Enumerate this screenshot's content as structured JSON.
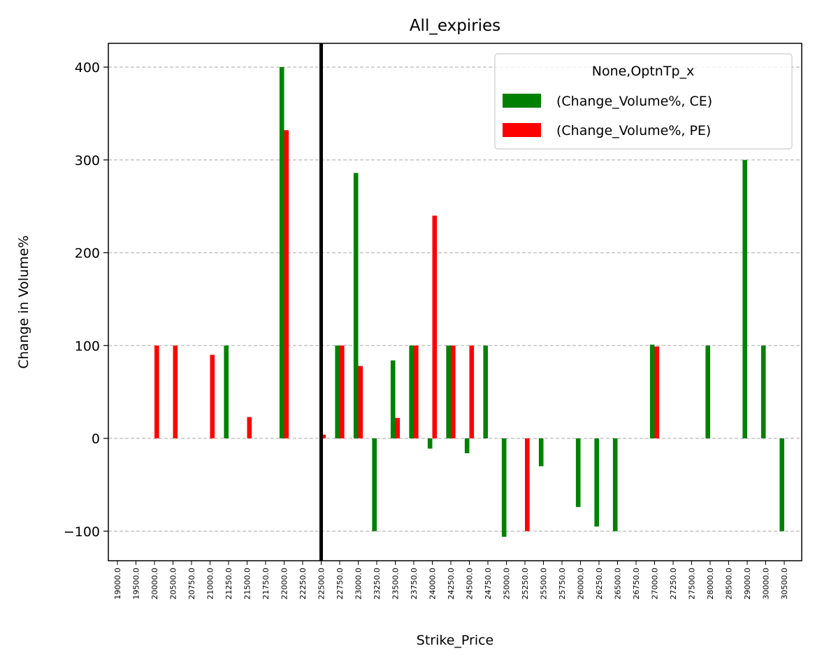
{
  "chart_data": {
    "type": "bar",
    "title": "All_expiries",
    "xlabel": "Strike_Price",
    "ylabel": "Change in Volume%",
    "ylim": [
      -130,
      425
    ],
    "yticks": [
      -100,
      0,
      100,
      200,
      300,
      400
    ],
    "ytick_labels": [
      "−100",
      "0",
      "100",
      "200",
      "300",
      "400"
    ],
    "grid": "y-dashed",
    "legend": {
      "title": "None,OptnTp_x",
      "placement": "top-right"
    },
    "vertical_marker": {
      "category": "22500.0",
      "color": "#000000"
    },
    "categories": [
      "19000.0",
      "19500.0",
      "20000.0",
      "20500.0",
      "20750.0",
      "21000.0",
      "21250.0",
      "21500.0",
      "21750.0",
      "22000.0",
      "22250.0",
      "22500.0",
      "22750.0",
      "23000.0",
      "23250.0",
      "23500.0",
      "23750.0",
      "24000.0",
      "24250.0",
      "24500.0",
      "24750.0",
      "25000.0",
      "25250.0",
      "25500.0",
      "25750.0",
      "26000.0",
      "26250.0",
      "26500.0",
      "26750.0",
      "27000.0",
      "27250.0",
      "27500.0",
      "28000.0",
      "28500.0",
      "29000.0",
      "30000.0",
      "30500.0"
    ],
    "series": [
      {
        "name": "(Change_Volume%, CE)",
        "color": "#008000",
        "values": [
          0,
          0,
          0,
          0,
          0,
          0,
          100,
          0,
          0,
          400,
          0,
          0,
          100,
          286,
          -100,
          84,
          100,
          -11,
          100,
          -16,
          100,
          -106,
          0,
          -30,
          0,
          -74,
          -95,
          -100,
          0,
          101,
          0,
          0,
          100,
          0,
          300,
          100,
          -100
        ]
      },
      {
        "name": "(Change_Volume%, PE)",
        "color": "#ff0000",
        "values": [
          0,
          0,
          100,
          100,
          0,
          90,
          0,
          23,
          0,
          332,
          0,
          4,
          100,
          78,
          0,
          22,
          100,
          240,
          100,
          100,
          0,
          0,
          -100,
          0,
          0,
          0,
          0,
          0,
          0,
          99,
          0,
          0,
          0,
          0,
          0,
          0,
          0
        ]
      }
    ]
  }
}
